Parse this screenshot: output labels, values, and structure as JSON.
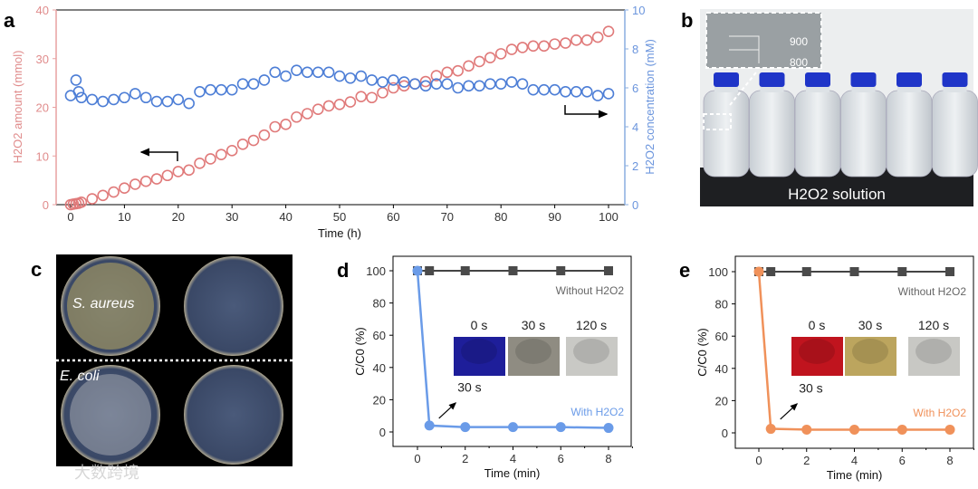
{
  "panels": {
    "a": "a",
    "b": "b",
    "c": "c",
    "d": "d",
    "e": "e"
  },
  "colors": {
    "red": "#e07a7a",
    "blue": "#4d7ed6",
    "gray": "#555555",
    "d_line": "#6a9be8",
    "e_line": "#f0915a",
    "red_axis": "#e8a0a0",
    "blue_axis": "#8aaee0"
  },
  "chart_data": [
    {
      "id": "a",
      "type": "scatter",
      "xlabel": "Time (h)",
      "ylabel_left": "H2O2 amount (mmol)",
      "ylabel_right": "H2O2 concentration (mM)",
      "xlim": [
        -3,
        103
      ],
      "ylim_left": [
        0,
        40
      ],
      "ylim_right": [
        0,
        10
      ],
      "xticks": [
        0,
        10,
        20,
        30,
        40,
        50,
        60,
        70,
        80,
        90,
        100
      ],
      "yticks_left": [
        0,
        10,
        20,
        30,
        40
      ],
      "yticks_right": [
        0,
        2,
        4,
        6,
        8,
        10
      ],
      "series": [
        {
          "name": "H2O2 amount",
          "axis": "left",
          "x": [
            0,
            0.5,
            1,
            1.5,
            2,
            4,
            6,
            8,
            10,
            12,
            14,
            16,
            18,
            20,
            22,
            24,
            26,
            28,
            30,
            32,
            34,
            36,
            38,
            40,
            42,
            44,
            46,
            48,
            50,
            52,
            54,
            56,
            58,
            60,
            62,
            64,
            66,
            68,
            70,
            72,
            74,
            76,
            78,
            80,
            82,
            84,
            86,
            88,
            90,
            92,
            94,
            96,
            98,
            100
          ],
          "y": [
            0,
            0.1,
            0.2,
            0.3,
            0.5,
            1.2,
            1.9,
            2.6,
            3.4,
            4.2,
            4.8,
            5.3,
            6.0,
            6.8,
            7.1,
            8.5,
            9.4,
            10.3,
            11.1,
            12.4,
            13.2,
            14.3,
            16.0,
            16.5,
            18.0,
            18.7,
            19.6,
            20.3,
            20.6,
            21.1,
            22.2,
            22.0,
            23.0,
            24.0,
            24.4,
            24.8,
            25.3,
            26.5,
            27.2,
            27.5,
            28.5,
            29.4,
            30.2,
            31.0,
            31.9,
            32.3,
            32.6,
            32.6,
            33.0,
            33.2,
            33.8,
            33.8,
            34.4,
            35.6
          ]
        },
        {
          "name": "H2O2 concentration",
          "axis": "right",
          "x": [
            0,
            1,
            1.5,
            2,
            4,
            6,
            8,
            10,
            12,
            14,
            16,
            18,
            20,
            22,
            24,
            26,
            28,
            30,
            32,
            34,
            36,
            38,
            40,
            42,
            44,
            46,
            48,
            50,
            52,
            54,
            56,
            58,
            60,
            62,
            64,
            66,
            68,
            70,
            72,
            74,
            76,
            78,
            80,
            82,
            84,
            86,
            88,
            90,
            92,
            94,
            96,
            98,
            100
          ],
          "y": [
            5.6,
            6.4,
            5.8,
            5.5,
            5.4,
            5.3,
            5.4,
            5.5,
            5.7,
            5.5,
            5.3,
            5.3,
            5.4,
            5.2,
            5.8,
            5.9,
            5.9,
            5.9,
            6.2,
            6.2,
            6.4,
            6.8,
            6.6,
            6.9,
            6.8,
            6.8,
            6.8,
            6.6,
            6.5,
            6.6,
            6.4,
            6.3,
            6.4,
            6.3,
            6.2,
            6.1,
            6.2,
            6.2,
            6.0,
            6.1,
            6.1,
            6.2,
            6.2,
            6.3,
            6.2,
            5.9,
            5.9,
            5.9,
            5.8,
            5.8,
            5.8,
            5.6,
            5.7
          ]
        }
      ]
    },
    {
      "id": "d",
      "type": "line",
      "xlabel": "Time (min)",
      "ylabel": "C/C0 (%)",
      "xlim": [
        -1,
        8.5
      ],
      "ylim": [
        -10,
        110
      ],
      "xticks": [
        0,
        2,
        4,
        6,
        8
      ],
      "yticks": [
        0,
        20,
        40,
        60,
        80,
        100
      ],
      "series": [
        {
          "name": "Without H2O2",
          "x": [
            0,
            0.5,
            2,
            4,
            6,
            8
          ],
          "y": [
            100,
            100,
            100,
            100,
            100,
            100
          ]
        },
        {
          "name": "With H2O2",
          "x": [
            0,
            0.5,
            2,
            4,
            6,
            8
          ],
          "y": [
            100,
            4,
            3,
            3,
            3,
            2.5
          ]
        }
      ],
      "annotation": "30 s",
      "inset_labels": [
        "0 s",
        "30 s",
        "120 s"
      ]
    },
    {
      "id": "e",
      "type": "line",
      "xlabel": "Time (min)",
      "ylabel": "C/C0 (%)",
      "xlim": [
        -1,
        8.5
      ],
      "ylim": [
        -10,
        110
      ],
      "xticks": [
        0,
        2,
        4,
        6,
        8
      ],
      "yticks": [
        0,
        20,
        40,
        60,
        80,
        100
      ],
      "series": [
        {
          "name": "Without H2O2",
          "x": [
            0,
            0.5,
            2,
            4,
            6,
            8
          ],
          "y": [
            100,
            100,
            100,
            100,
            100,
            100
          ]
        },
        {
          "name": "With H2O2",
          "x": [
            0,
            0.5,
            2,
            4,
            6,
            8
          ],
          "y": [
            100,
            2.5,
            2,
            2,
            2,
            2
          ]
        }
      ],
      "annotation": "30 s",
      "inset_labels": [
        "0 s",
        "30 s",
        "120 s"
      ]
    }
  ],
  "photo_b": {
    "caption": "H2O2 solution",
    "inset_marks": [
      "900",
      "800"
    ]
  },
  "photo_c": {
    "top_label": "S. aureus",
    "bottom_label": "E. coli"
  },
  "watermark": "大数跨境"
}
